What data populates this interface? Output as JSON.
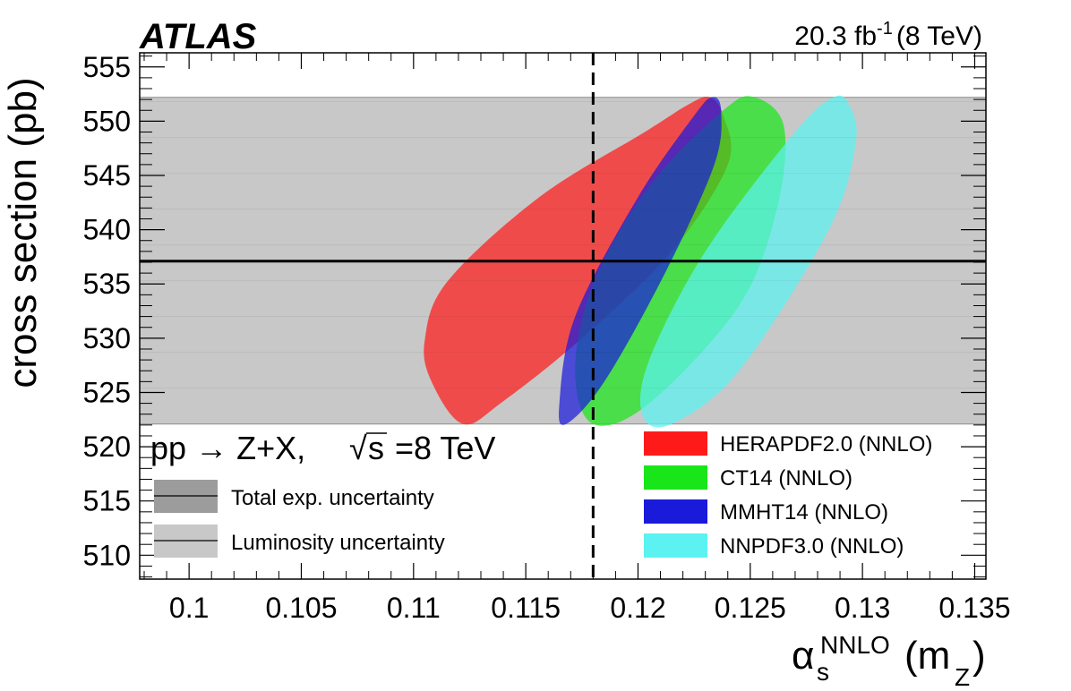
{
  "header": {
    "experiment": "ATLAS",
    "luminosity": "20.3 fb",
    "luminosity_exp": "-1",
    "energy": "(8 TeV)"
  },
  "process": {
    "text_pp": "pp",
    "arrow": "→",
    "text_zx": "Z+X,",
    "sqrt_symbol": "√",
    "text_s": "s",
    "text_energy": "=8 TeV"
  },
  "band_legend": [
    {
      "label": "Total exp. uncertainty",
      "color": "#9c9c9c"
    },
    {
      "label": "Luminosity uncertainty",
      "color": "#c8c8c8"
    }
  ],
  "pdf_legend": [
    {
      "label": "HERAPDF2.0 (NNLO)",
      "color": "#ff1a1a"
    },
    {
      "label": "CT14 (NNLO)",
      "color": "#19e619"
    },
    {
      "label": "MMHT14 (NNLO)",
      "color": "#1a1adb"
    },
    {
      "label": "NNPDF3.0 (NNLO)",
      "color": "#5cf2f2"
    }
  ],
  "axes": {
    "ylabel": "cross section (pb)",
    "xlabel_main": "α",
    "xlabel_sub": "s",
    "xlabel_sup": "NNLO",
    "xlabel_paren_open": "(m",
    "xlabel_paren_sub": "Z",
    "xlabel_paren_close": ")"
  },
  "chart_data": {
    "type": "scatter",
    "xlim": [
      0.0978,
      0.1355
    ],
    "ylim": [
      507.8,
      556.3
    ],
    "x_ticks": [
      "0.1",
      "0.105",
      "0.11",
      "0.115",
      "0.12",
      "0.125",
      "0.13",
      "0.135"
    ],
    "x_tick_values": [
      0.1,
      0.105,
      0.11,
      0.115,
      0.12,
      0.125,
      0.13,
      0.135
    ],
    "y_ticks": [
      "510",
      "515",
      "520",
      "525",
      "530",
      "535",
      "540",
      "545",
      "550",
      "555"
    ],
    "y_tick_values": [
      510,
      515,
      520,
      525,
      530,
      535,
      540,
      545,
      550,
      555
    ],
    "measured_cross_section": 537.1,
    "luminosity_band": [
      522.1,
      552.2
    ],
    "reference_alpha_s": 0.118,
    "grid": false,
    "series": [
      {
        "name": "HERAPDF2.0 (NNLO)",
        "color": "#ff1a1a",
        "ellipse": [
          [
            0.1232,
            552.2
          ],
          [
            0.1223,
            551.6
          ],
          [
            0.1203,
            549.0
          ],
          [
            0.1156,
            543.0
          ],
          [
            0.1115,
            535.2
          ],
          [
            0.1105,
            529.8
          ],
          [
            0.1108,
            526.0
          ],
          [
            0.1122,
            522.1
          ],
          [
            0.114,
            524.2
          ],
          [
            0.1175,
            530.0
          ],
          [
            0.1215,
            538.0
          ],
          [
            0.124,
            546.0
          ],
          [
            0.1238,
            550.5
          ]
        ]
      },
      {
        "name": "CT14 (NNLO)",
        "color": "#19e619",
        "ellipse": [
          [
            0.1252,
            552.2
          ],
          [
            0.1238,
            551.0
          ],
          [
            0.1205,
            544.0
          ],
          [
            0.118,
            535.0
          ],
          [
            0.1172,
            527.0
          ],
          [
            0.118,
            522.1
          ],
          [
            0.1205,
            524.0
          ],
          [
            0.1245,
            533.0
          ],
          [
            0.1262,
            542.0
          ],
          [
            0.1265,
            549.5
          ]
        ]
      },
      {
        "name": "MMHT14 (NNLO)",
        "color": "#1a1adb",
        "ellipse": [
          [
            0.1233,
            552.2
          ],
          [
            0.1225,
            550.5
          ],
          [
            0.12,
            543.0
          ],
          [
            0.1172,
            532.0
          ],
          [
            0.1165,
            524.0
          ],
          [
            0.1168,
            522.1
          ],
          [
            0.1185,
            526.0
          ],
          [
            0.1212,
            536.0
          ],
          [
            0.1234,
            546.0
          ],
          [
            0.1237,
            551.0
          ]
        ]
      },
      {
        "name": "NNPDF3.0 (NNLO)",
        "color": "#5cf2f2",
        "ellipse": [
          [
            0.1287,
            552.2
          ],
          [
            0.127,
            549.0
          ],
          [
            0.123,
            538.0
          ],
          [
            0.1205,
            528.0
          ],
          [
            0.1202,
            522.9
          ],
          [
            0.1215,
            522.1
          ],
          [
            0.1245,
            527.0
          ],
          [
            0.1285,
            540.0
          ],
          [
            0.1297,
            548.0
          ],
          [
            0.1294,
            551.5
          ]
        ]
      }
    ]
  }
}
